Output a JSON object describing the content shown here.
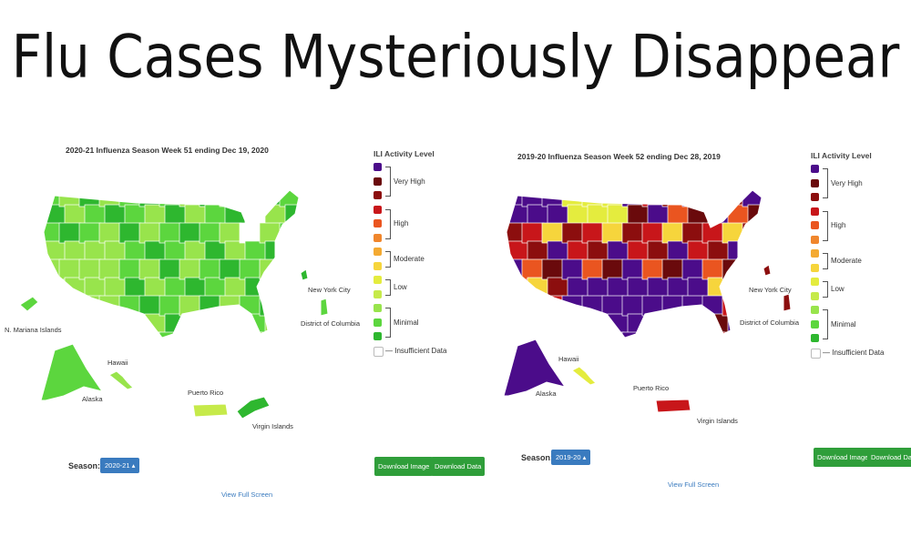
{
  "headline": "Flu Cases Mysteriously Disappear",
  "legend": {
    "title": "ILI Activity Level",
    "groups": [
      "Very High",
      "High",
      "Moderate",
      "Low",
      "Minimal"
    ],
    "insufficient": "Insufficient Data",
    "colors": [
      "#4b0c8a",
      "#6a0a0c",
      "#8c0e0e",
      "#c8161a",
      "#ea5520",
      "#f0862c",
      "#f4aa32",
      "#f6d53c",
      "#e4ec3e",
      "#c6ea4a",
      "#98e44c",
      "#5cd63e",
      "#2eb72f",
      "#ffffff"
    ]
  },
  "left": {
    "title": "2020-21 Influenza Season Week 51 ending Dec 19, 2020",
    "labels": {
      "mariana": "N. Mariana Islands",
      "hawaii": "Hawaii",
      "alaska": "Alaska",
      "pr": "Puerto Rico",
      "vi": "Virgin Islands",
      "nyc": "New York City",
      "dc": "District of Columbia"
    },
    "season_label": "Season:",
    "season_value": "2020-21",
    "download_image": "Download Image",
    "download_data": "Download Data",
    "view_full_screen": "View Full Screen"
  },
  "right": {
    "title": "2019-20 Influenza Season Week 52 ending Dec 28, 2019",
    "labels": {
      "hawaii": "Hawaii",
      "alaska": "Alaska",
      "pr": "Puerto Rico",
      "vi": "Virgin Islands",
      "nyc": "New York City",
      "dc": "District of Columbia"
    },
    "season_label": "Season:",
    "season_value": "2019-20",
    "download_image": "Download Image",
    "download_data": "Download Data",
    "view_full_screen": "View Full Screen"
  }
}
